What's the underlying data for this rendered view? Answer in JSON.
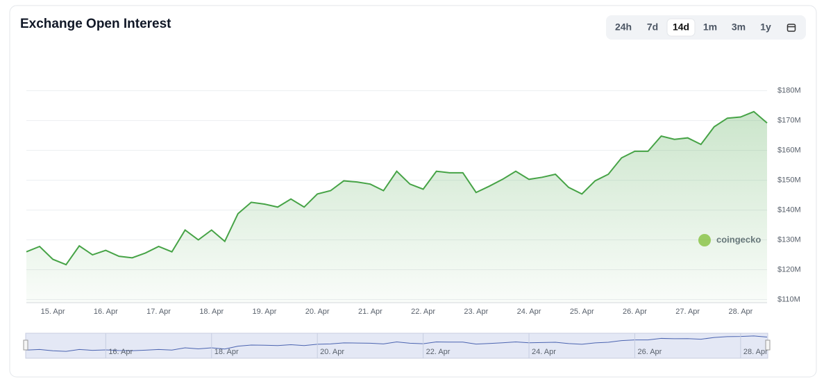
{
  "chart_data": {
    "type": "line",
    "title": "Exchange Open Interest",
    "controls": [
      "24h",
      "7d",
      "14d",
      "1m",
      "3m",
      "1y"
    ],
    "selected_control": "14d",
    "watermark": "coingecko",
    "categories": [
      null,
      null,
      "15. Apr",
      null,
      null,
      null,
      "16. Apr",
      null,
      null,
      null,
      "17. Apr",
      null,
      null,
      null,
      "18. Apr",
      null,
      null,
      null,
      "19. Apr",
      null,
      null,
      null,
      "20. Apr",
      null,
      null,
      null,
      "21. Apr",
      null,
      null,
      null,
      "22. Apr",
      null,
      null,
      null,
      "23. Apr",
      null,
      null,
      null,
      "24. Apr",
      null,
      null,
      null,
      "25. Apr",
      null,
      null,
      null,
      "26. Apr",
      null,
      null,
      null,
      "27. Apr",
      null,
      null,
      null,
      "28. Apr",
      null,
      null
    ],
    "series": [
      {
        "name": "Exchange Open Interest",
        "color": "#46a346",
        "values": [
          126,
          127.8,
          123.5,
          121.7,
          128,
          125,
          126.5,
          124.5,
          124,
          125.6,
          127.8,
          126,
          133.3,
          130,
          133.3,
          129.5,
          138.8,
          142.6,
          142,
          141,
          143.7,
          141,
          145.4,
          146.5,
          149.8,
          149.4,
          148.7,
          146.5,
          153,
          148.7,
          147,
          153,
          152.5,
          152.5,
          145.9,
          148,
          150.3,
          153,
          150.3,
          151,
          152,
          147.6,
          145.4,
          149.8,
          152,
          157.5,
          159.7,
          159.7,
          164.8,
          163.7,
          164.2,
          162,
          167.9,
          170.8,
          171.2,
          173,
          169.2
        ]
      }
    ],
    "ylim": [
      108,
      182
    ],
    "yticks": [
      {
        "value": 110,
        "label": "$110M"
      },
      {
        "value": 120,
        "label": "$120M"
      },
      {
        "value": 130,
        "label": "$130M"
      },
      {
        "value": 140,
        "label": "$140M"
      },
      {
        "value": 150,
        "label": "$150M"
      },
      {
        "value": 160,
        "label": "$160M"
      },
      {
        "value": 170,
        "label": "$170M"
      },
      {
        "value": 180,
        "label": "$180M"
      }
    ],
    "grid": true,
    "navigator_labels": [
      "16. Apr",
      "18. Apr",
      "20. Apr",
      "22. Apr",
      "24. Apr",
      "26. Apr",
      "28. Apr"
    ]
  }
}
